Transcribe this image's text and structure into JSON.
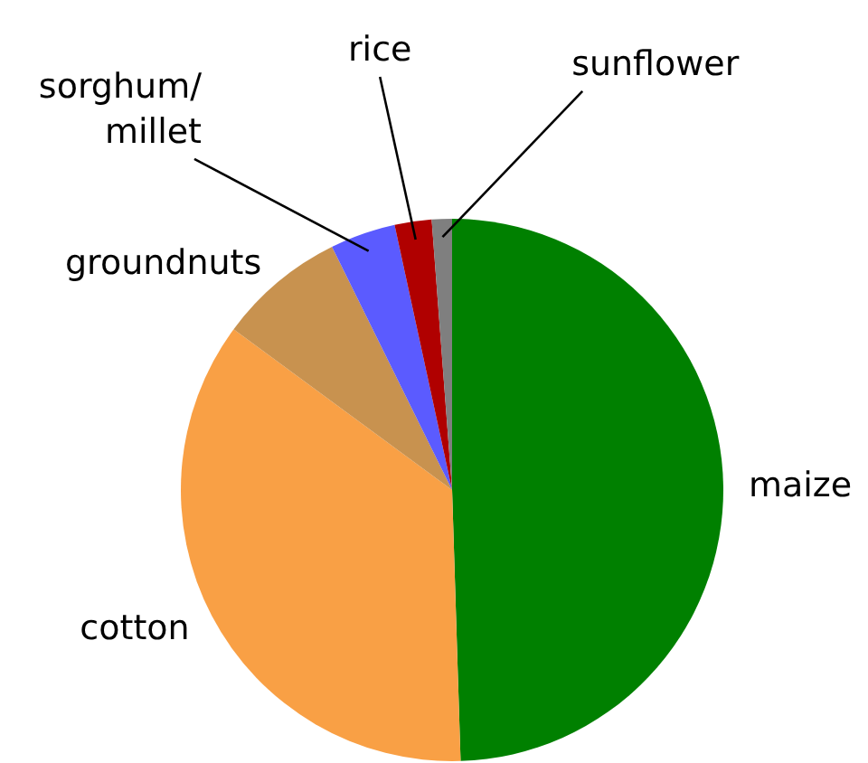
{
  "chart_data": {
    "type": "pie",
    "categories": [
      "maize",
      "cotton",
      "groundnuts",
      "sorghum/ millet",
      "rice",
      "sunflower"
    ],
    "values": [
      49.5,
      35.6,
      7.6,
      3.9,
      2.2,
      1.2
    ],
    "colors": [
      "#008000",
      "#f9a045",
      "#c8924f",
      "#5b5bff",
      "#b00000",
      "#7f7f7f"
    ]
  }
}
